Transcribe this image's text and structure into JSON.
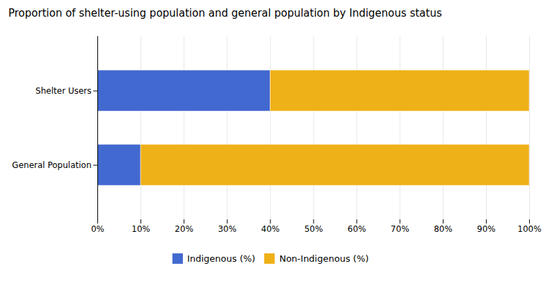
{
  "chart_data": {
    "type": "bar",
    "orientation": "horizontal",
    "stacked": true,
    "title": "Proportion of shelter-using population and general population by Indigenous status",
    "categories": [
      "General Population",
      "Shelter Users"
    ],
    "series": [
      {
        "name": "Indigenous (%)",
        "values": [
          0.1,
          0.4
        ]
      },
      {
        "name": "Non-Indigenous (%)",
        "values": [
          0.9,
          0.6
        ]
      }
    ],
    "xlim": [
      0,
      1.0
    ],
    "xticks": [
      {
        "value": 0.0,
        "label": "0%"
      },
      {
        "value": 0.1,
        "label": "10%"
      },
      {
        "value": 0.2,
        "label": "20%"
      },
      {
        "value": 0.3,
        "label": "30%"
      },
      {
        "value": 0.4,
        "label": "40%"
      },
      {
        "value": 0.5,
        "label": "50%"
      },
      {
        "value": 0.6,
        "label": "60%"
      },
      {
        "value": 0.7,
        "label": "70%"
      },
      {
        "value": 0.8,
        "label": "80%"
      },
      {
        "value": 0.9,
        "label": "90%"
      },
      {
        "value": 1.0,
        "label": "100%"
      }
    ],
    "grid": true,
    "legend": "bottom"
  }
}
